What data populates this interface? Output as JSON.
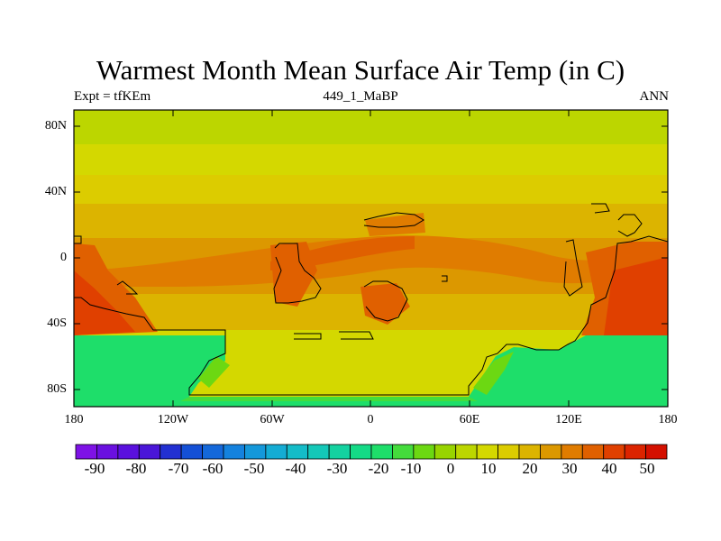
{
  "title": "Warmest Month Mean Surface Air Temp (in C)",
  "subtitle_left": "Expt = tfKEm",
  "subtitle_center": "449_1_MaBP",
  "subtitle_right": "ANN",
  "lat_labels": [
    "80N",
    "40N",
    "0",
    "40S",
    "80S"
  ],
  "lon_labels": [
    "180",
    "120W",
    "60W",
    "0",
    "60E",
    "120E",
    "180"
  ],
  "colorbar": {
    "labels": [
      "-90",
      "-80",
      "-70",
      "-60",
      "-50",
      "-40",
      "-30",
      "-20",
      "-10",
      "0",
      "10",
      "20",
      "30",
      "40",
      "50"
    ],
    "colors": [
      "#7e12e6",
      "#6a10e0",
      "#5a10de",
      "#4a16d8",
      "#2230d2",
      "#1450d6",
      "#1468da",
      "#1482de",
      "#1498da",
      "#14acd4",
      "#14bcc8",
      "#14c8b8",
      "#14d2a0",
      "#14da86",
      "#1ede6a",
      "#44dc3c",
      "#6cd812",
      "#98d400",
      "#bcd600",
      "#d4d800",
      "#dccc00",
      "#dcb400",
      "#dc9800",
      "#e07c00",
      "#e06000",
      "#e04000",
      "#dc2400",
      "#d41000"
    ]
  }
}
